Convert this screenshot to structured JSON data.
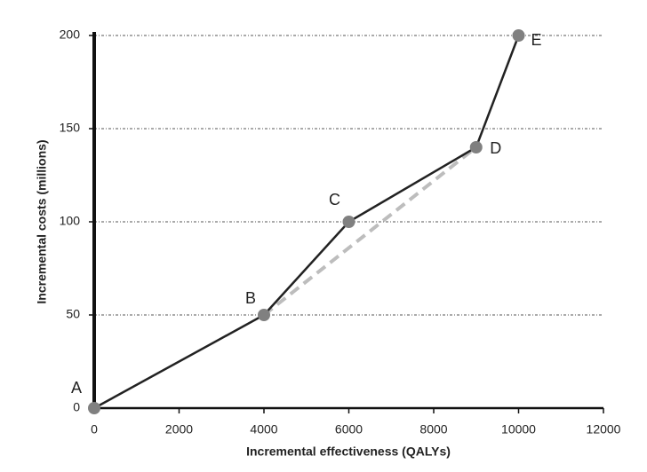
{
  "chart_data": {
    "type": "line",
    "x_label": "Incremental effectiveness (QALYs)",
    "y_label": "Incremental costs (millions)",
    "xlim": [
      0,
      12000
    ],
    "xticks": [
      0,
      2000,
      4000,
      6000,
      8000,
      10000,
      12000
    ],
    "ylim": [
      0,
      200
    ],
    "yticks": [
      0,
      50,
      100,
      150,
      200
    ],
    "grid": true,
    "point_labels": [
      "A",
      "B",
      "C",
      "D",
      "E"
    ],
    "series": [
      {
        "color": "#222222",
        "marker_color": "#808080",
        "dashed": false,
        "x": [
          0,
          4000,
          6000,
          9000,
          10000
        ],
        "values": [
          0,
          50,
          100,
          140,
          200
        ]
      },
      {
        "color": "#bdbdbd",
        "dashed": true,
        "x": [
          4000,
          9000
        ],
        "values": [
          50,
          140
        ]
      }
    ]
  }
}
